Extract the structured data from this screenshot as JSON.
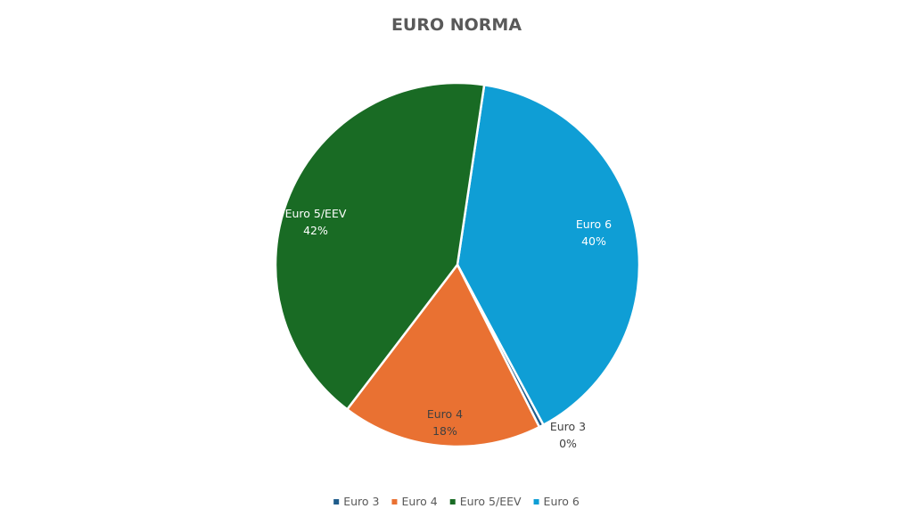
{
  "chart_data": {
    "type": "pie",
    "title": "EURO NORMA",
    "categories": [
      "Euro 3",
      "Euro 4",
      "Euro 5/EEV",
      "Euro 6"
    ],
    "values": [
      0.4,
      17.8,
      42.0,
      39.8
    ],
    "data_labels": [
      {
        "category": "Euro 3",
        "percent": "0%"
      },
      {
        "category": "Euro 4",
        "percent": "18%"
      },
      {
        "category": "Euro 5/EEV",
        "percent": "42%"
      },
      {
        "category": "Euro 6",
        "percent": "40%"
      }
    ],
    "colors": [
      "#1f5c8b",
      "#e97132",
      "#196b24",
      "#0f9ed5"
    ],
    "label_colors": [
      "#404040",
      "#404040",
      "#ffffff",
      "#ffffff"
    ],
    "legend": {
      "position": "bottom",
      "entries": [
        "Euro 3",
        "Euro 4",
        "Euro 5/EEV",
        "Euro 6"
      ]
    }
  }
}
